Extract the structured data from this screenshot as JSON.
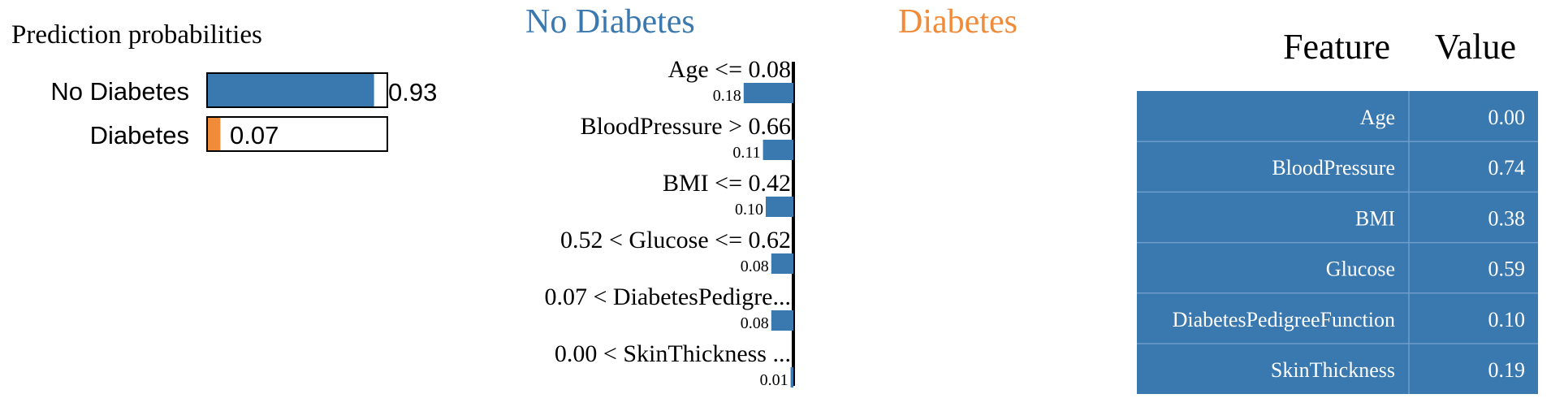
{
  "colors": {
    "no_diabetes": "#3a78b0",
    "diabetes": "#f08b3a",
    "table_bg": "#3a78b0",
    "table_text": "#ffffff",
    "axis": "#000000"
  },
  "chart_data": [
    {
      "type": "bar",
      "title": "Prediction probabilities",
      "categories": [
        "No Diabetes",
        "Diabetes"
      ],
      "values": [
        0.93,
        0.07
      ],
      "value_labels": [
        "0.93",
        "0.07"
      ],
      "xlim": [
        0,
        1
      ]
    },
    {
      "type": "bar",
      "orientation": "horizontal",
      "class_labels": {
        "left": "No Diabetes",
        "right": "Diabetes"
      },
      "categories": [
        "Age <= 0.08",
        "BloodPressure > 0.66",
        "BMI <= 0.42",
        "0.52 < Glucose <= 0.62",
        "0.07 < DiabetesPedigre...",
        "0.00 < SkinThickness ..."
      ],
      "values": [
        0.18,
        0.11,
        0.1,
        0.08,
        0.08,
        0.01
      ],
      "value_labels": [
        "0.18",
        "0.11",
        "0.10",
        "0.08",
        "0.08",
        "0.01"
      ],
      "side": [
        "left",
        "left",
        "left",
        "left",
        "left",
        "left"
      ]
    },
    {
      "type": "table",
      "columns": [
        "Feature",
        "Value"
      ],
      "rows": [
        [
          "Age",
          "0.00"
        ],
        [
          "BloodPressure",
          "0.74"
        ],
        [
          "BMI",
          "0.38"
        ],
        [
          "Glucose",
          "0.59"
        ],
        [
          "DiabetesPedigreeFunction",
          "0.10"
        ],
        [
          "SkinThickness",
          "0.19"
        ]
      ]
    }
  ]
}
